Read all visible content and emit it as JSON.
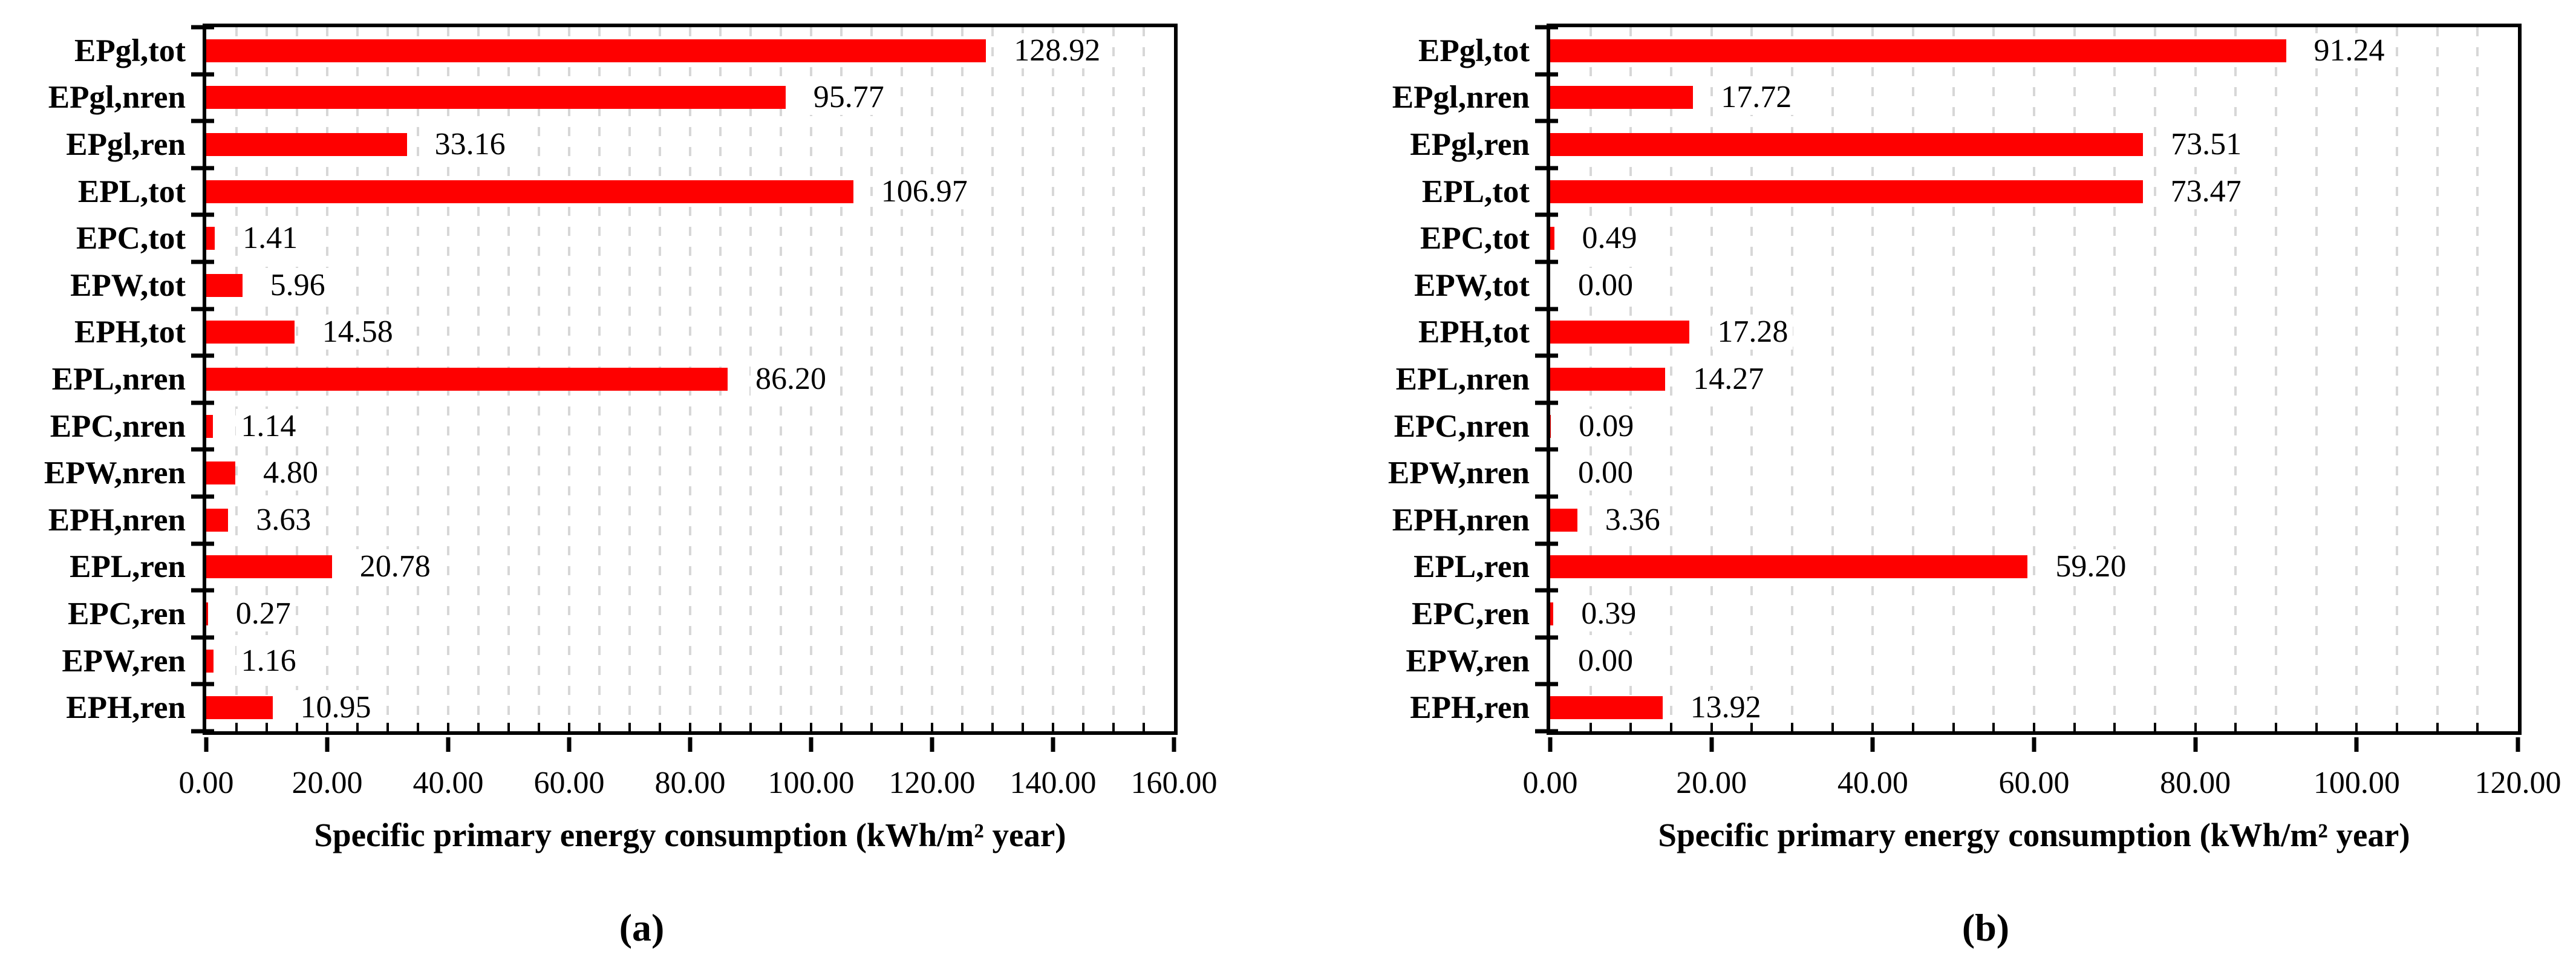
{
  "figure": {
    "background": "#ffffff",
    "bar_color": "#fe0000",
    "gridline_color": "#d7d7d7"
  },
  "chart_data": [
    {
      "type": "bar",
      "orientation": "horizontal",
      "panel_label": "(a)",
      "xlabel": "Specific primary energy consumption (kWh/m² year)",
      "ylabel": "",
      "xlim": [
        0,
        160
      ],
      "x_major_step": 20,
      "x_minor_step": 5,
      "grid": "vertical dashed every 5",
      "legend": "none",
      "bar_color": "#fe0000",
      "x_tick_labels": [
        "0.00",
        "20.00",
        "40.00",
        "60.00",
        "80.00",
        "100.00",
        "120.00",
        "140.00",
        "160.00"
      ],
      "categories": [
        "EPgl,tot",
        "EPgl,nren",
        "EPgl,ren",
        "EPL,tot",
        "EPC,tot",
        "EPW,tot",
        "EPH,tot",
        "EPL,nren",
        "EPC,nren",
        "EPW,nren",
        "EPH,nren",
        "EPL,ren",
        "EPC,ren",
        "EPW,ren",
        "EPH,ren"
      ],
      "values": [
        128.92,
        95.77,
        33.16,
        106.97,
        1.41,
        5.96,
        14.58,
        86.2,
        1.14,
        4.8,
        3.63,
        20.78,
        0.27,
        1.16,
        10.95
      ],
      "value_labels": [
        "128.92",
        "95.77",
        "33.16",
        "106.97",
        "1.41",
        "5.96",
        "14.58",
        "86.20",
        "1.14",
        "4.80",
        "3.63",
        "20.78",
        "0.27",
        "1.16",
        "10.95"
      ]
    },
    {
      "type": "bar",
      "orientation": "horizontal",
      "panel_label": "(b)",
      "xlabel": "Specific primary energy consumption (kWh/m² year)",
      "ylabel": "",
      "xlim": [
        0,
        120
      ],
      "x_major_step": 20,
      "x_minor_step": 5,
      "grid": "vertical dashed every 5",
      "legend": "none",
      "bar_color": "#fe0000",
      "x_tick_labels": [
        "0.00",
        "20.00",
        "40.00",
        "60.00",
        "80.00",
        "100.00",
        "120.00"
      ],
      "categories": [
        "EPgl,tot",
        "EPgl,nren",
        "EPgl,ren",
        "EPL,tot",
        "EPC,tot",
        "EPW,tot",
        "EPH,tot",
        "EPL,nren",
        "EPC,nren",
        "EPW,nren",
        "EPH,nren",
        "EPL,ren",
        "EPC,ren",
        "EPW,ren",
        "EPH,ren"
      ],
      "values": [
        91.24,
        17.72,
        73.51,
        73.47,
        0.49,
        0.0,
        17.28,
        14.27,
        0.09,
        0.0,
        3.36,
        59.2,
        0.39,
        0.0,
        13.92
      ],
      "value_labels": [
        "91.24",
        "17.72",
        "73.51",
        "73.47",
        "0.49",
        "0.00",
        "17.28",
        "14.27",
        "0.09",
        "0.00",
        "3.36",
        "59.20",
        "0.39",
        "0.00",
        "13.92"
      ]
    }
  ]
}
